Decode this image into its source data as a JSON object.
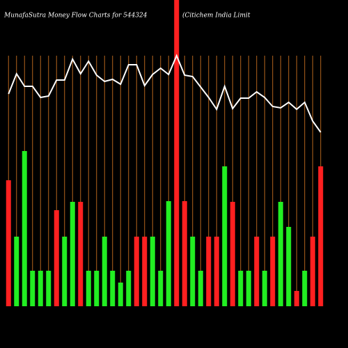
{
  "chart_data": {
    "type": "money-flow",
    "title": "MunafaSutra  Money Flow  Charts for 544324",
    "subtitle": "(Citichem India  Limit",
    "categories": [
      null,
      null,
      null,
      null,
      null,
      null,
      null,
      null,
      null,
      null,
      null,
      null,
      null,
      null,
      null,
      null,
      null,
      null,
      null,
      null,
      null,
      null,
      null,
      null,
      null,
      null,
      null,
      null,
      null,
      null,
      null,
      null,
      null,
      null,
      null,
      null,
      null,
      null,
      null,
      null
    ],
    "ylim": [
      0,
      440
    ],
    "grid": true,
    "grid_color": "#b5651d",
    "series": [
      {
        "kind": "bar",
        "colors": [
          "#ff2020",
          "#22ee22",
          "#22ee22",
          "#22ee22",
          "#22ee22",
          "#22ee22",
          "#ff2020",
          "#22ee22",
          "#22ee22",
          "#ff2020",
          "#22ee22",
          "#22ee22",
          "#22ee22",
          "#22ee22",
          "#22ee22",
          "#22ee22",
          "#ff2020",
          "#ff2020",
          "#22ee22",
          "#22ee22",
          "#22ee22",
          "#ff2020",
          "#ff2020",
          "#22ee22",
          "#22ee22",
          "#ff2020",
          "#ff2020",
          "#22ee22",
          "#ff2020",
          "#22ee22",
          "#22ee22",
          "#ff2020",
          "#22ee22",
          "#ff2020",
          "#22ee22",
          "#22ee22",
          "#ff2020",
          "#22ee22",
          "#ff2020",
          "#ff2020"
        ],
        "values": [
          181,
          100,
          223,
          51,
          51,
          51,
          138,
          100,
          150,
          150,
          51,
          51,
          100,
          51,
          34,
          51,
          100,
          100,
          100,
          51,
          151,
          440,
          151,
          100,
          51,
          100,
          100,
          201,
          150,
          51,
          51,
          100,
          51,
          100,
          150,
          114,
          22,
          51,
          100,
          201
        ]
      },
      {
        "kind": "line",
        "color": "#ffffff",
        "values": [
          305,
          334,
          316,
          316,
          300,
          302,
          325,
          325,
          355,
          334,
          352,
          332,
          323,
          326,
          319,
          347,
          347,
          317,
          333,
          342,
          333,
          360,
          332,
          330,
          315,
          300,
          283,
          316,
          284,
          299,
          299,
          308,
          300,
          287,
          285,
          293,
          283,
          293,
          266,
          250
        ]
      }
    ]
  }
}
